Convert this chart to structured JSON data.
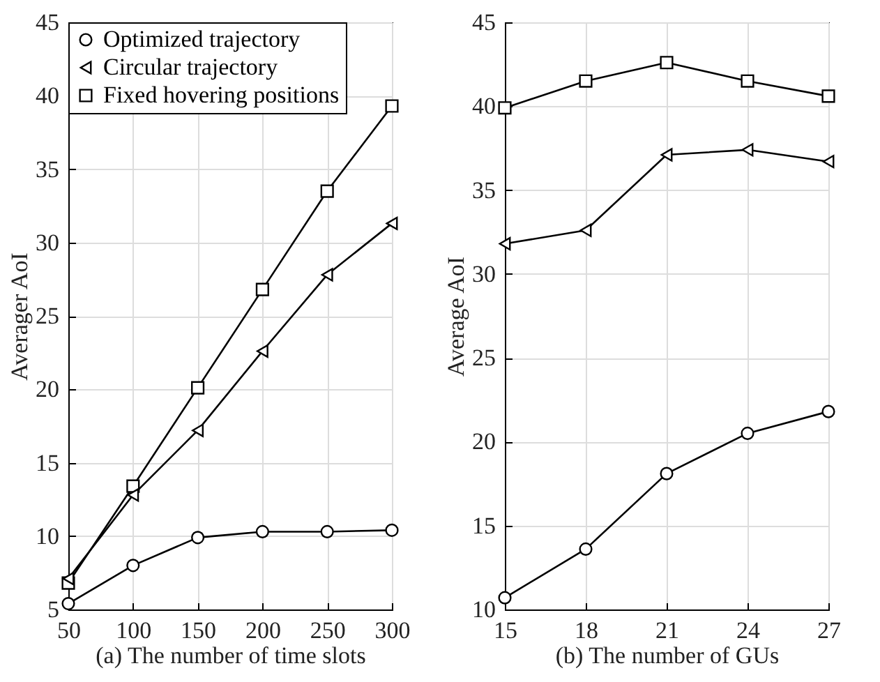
{
  "chart_data": [
    {
      "type": "line",
      "xlabel": "(a) The number of time slots",
      "ylabel": "Averager AoI",
      "x": [
        50,
        100,
        150,
        200,
        250,
        300
      ],
      "xlim": [
        50,
        300
      ],
      "xticks": [
        50,
        100,
        150,
        200,
        250,
        300
      ],
      "ylim": [
        5,
        45
      ],
      "yticks": [
        5,
        10,
        15,
        20,
        25,
        30,
        35,
        40,
        45
      ],
      "grid": true,
      "legend": "top left",
      "series": [
        {
          "name": "Optimized trajectory",
          "color": "#000000",
          "marker": "circle",
          "values": [
            5.4,
            8.0,
            9.9,
            10.3,
            10.3,
            10.4
          ]
        },
        {
          "name": "Circular trajectory",
          "color": "#000000",
          "marker": "triangle",
          "values": [
            7.1,
            12.8,
            17.2,
            22.6,
            27.8,
            31.3
          ]
        },
        {
          "name": "Fixed hovering positions",
          "color": "#000000",
          "marker": "square",
          "values": [
            6.8,
            13.4,
            20.1,
            26.8,
            33.5,
            39.3
          ]
        }
      ]
    },
    {
      "type": "line",
      "xlabel": "(b) The number of GUs",
      "ylabel": "Average AoI",
      "x": [
        15,
        18,
        21,
        24,
        27
      ],
      "xlim": [
        15,
        27
      ],
      "xticks": [
        15,
        18,
        21,
        24,
        27
      ],
      "ylim": [
        10,
        45
      ],
      "yticks": [
        10,
        15,
        20,
        25,
        30,
        35,
        40,
        45
      ],
      "grid": true,
      "series": [
        {
          "color": "#000000",
          "marker": "circle",
          "values": [
            10.7,
            13.6,
            18.1,
            20.5,
            21.8
          ]
        },
        {
          "color": "#000000",
          "marker": "triangle",
          "values": [
            31.8,
            32.6,
            37.1,
            37.4,
            36.7
          ]
        },
        {
          "color": "#000000",
          "marker": "square",
          "values": [
            39.9,
            41.5,
            42.6,
            41.5,
            40.6
          ]
        }
      ]
    }
  ]
}
